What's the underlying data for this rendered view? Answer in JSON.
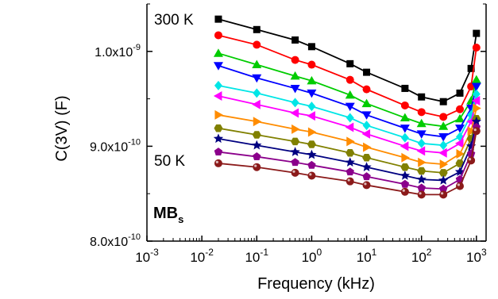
{
  "chart_data": {
    "type": "line",
    "title": "",
    "xlabel": "Frequency (kHz)",
    "ylabel": "C(3V) (F)",
    "x_scale": "log",
    "xlim": [
      0.001,
      1500
    ],
    "ylim": [
      8e-10,
      1.05e-09
    ],
    "grid": false,
    "x_ticks": [
      0.001,
      0.01,
      0.1,
      1,
      10,
      100,
      1000
    ],
    "x_tick_labels": [
      {
        "base": "10",
        "exp": "-3"
      },
      {
        "base": "10",
        "exp": "-2"
      },
      {
        "base": "10",
        "exp": "-1"
      },
      {
        "base": "10",
        "exp": "0"
      },
      {
        "base": "10",
        "exp": "1"
      },
      {
        "base": "10",
        "exp": "2"
      },
      {
        "base": "10",
        "exp": "3"
      }
    ],
    "y_ticks": [
      8e-10,
      9e-10,
      1e-09
    ],
    "y_tick_labels": [
      {
        "mant": "8.0x10",
        "exp": "-10"
      },
      {
        "mant": "9.0x10",
        "exp": "-10"
      },
      {
        "mant": "1.0x10",
        "exp": "-9"
      }
    ],
    "annotations": {
      "top_label": "300 K",
      "bottom_label": "50 K",
      "bottom_label_color": "#7a1515",
      "sample_main": "MB",
      "sample_sub": "s"
    },
    "x": [
      0.02,
      0.1,
      0.5,
      1,
      5,
      10,
      50,
      100,
      250,
      500,
      800,
      1000
    ],
    "series": [
      {
        "color": "#000000",
        "marker": "square",
        "values": [
          1.034e-09,
          1.023e-09,
          1.012e-09,
          1.005e-09,
          9.87e-10,
          9.78e-10,
          9.61e-10,
          9.52e-10,
          9.47e-10,
          9.56e-10,
          9.82e-10,
          1.019e-09
        ]
      },
      {
        "color": "#ff0000",
        "marker": "circle",
        "values": [
          1.017e-09,
          1.007e-09,
          9.91e-10,
          9.86e-10,
          9.7e-10,
          9.6e-10,
          9.43e-10,
          9.36e-10,
          9.31e-10,
          9.39e-10,
          9.63e-10,
          1.004e-09
        ]
      },
      {
        "color": "#00cc00",
        "marker": "triangle-up",
        "values": [
          9.98e-10,
          9.86e-10,
          9.74e-10,
          9.69e-10,
          9.54e-10,
          9.45e-10,
          9.3e-10,
          9.24e-10,
          9.21e-10,
          9.29e-10,
          9.48e-10,
          9.7e-10
        ]
      },
      {
        "color": "#0000ff",
        "marker": "triangle-down",
        "values": [
          9.85e-10,
          9.72e-10,
          9.61e-10,
          9.56e-10,
          9.42e-10,
          9.33e-10,
          9.19e-10,
          9.13e-10,
          9.1e-10,
          9.19e-10,
          9.4e-10,
          9.63e-10
        ]
      },
      {
        "color": "#00e6e6",
        "marker": "diamond",
        "values": [
          9.64e-10,
          9.56e-10,
          9.46e-10,
          9.42e-10,
          9.3e-10,
          9.22e-10,
          9.09e-10,
          9.03e-10,
          9.01e-10,
          9.1e-10,
          9.33e-10,
          9.55e-10
        ]
      },
      {
        "color": "#ff00ff",
        "marker": "triangle-left",
        "values": [
          9.53e-10,
          9.44e-10,
          9.35e-10,
          9.32e-10,
          9.2e-10,
          9.13e-10,
          9e-10,
          8.95e-10,
          8.93e-10,
          9.03e-10,
          9.26e-10,
          9.48e-10
        ]
      },
      {
        "color": "#ff8c00",
        "marker": "triangle-right",
        "values": [
          9.33e-10,
          9.26e-10,
          9.18e-10,
          9.15e-10,
          9.05e-10,
          8.99e-10,
          8.88e-10,
          8.83e-10,
          8.81e-10,
          8.92e-10,
          9.16e-10,
          9.4e-10
        ]
      },
      {
        "color": "#808000",
        "marker": "hexagon",
        "values": [
          9.19e-10,
          9.12e-10,
          9.05e-10,
          9.02e-10,
          8.93e-10,
          8.88e-10,
          8.78e-10,
          8.74e-10,
          8.72e-10,
          8.82e-10,
          9.08e-10,
          9.29e-10
        ]
      },
      {
        "color": "#000080",
        "marker": "star",
        "values": [
          9.08e-10,
          9.01e-10,
          8.94e-10,
          8.91e-10,
          8.83e-10,
          8.78e-10,
          8.69e-10,
          8.65e-10,
          8.64e-10,
          8.73e-10,
          9e-10,
          9.26e-10
        ]
      },
      {
        "color": "#8b008b",
        "marker": "pentagon",
        "values": [
          8.94e-10,
          8.89e-10,
          8.83e-10,
          8.8e-10,
          8.73e-10,
          8.68e-10,
          8.6e-10,
          8.56e-10,
          8.55e-10,
          8.65e-10,
          8.92e-10,
          9.2e-10
        ]
      },
      {
        "color": "#8b1a1a",
        "marker": "ball",
        "values": [
          8.82e-10,
          8.78e-10,
          8.72e-10,
          8.69e-10,
          8.63e-10,
          8.59e-10,
          8.52e-10,
          8.49e-10,
          8.49e-10,
          8.58e-10,
          8.85e-10,
          9.16e-10
        ]
      }
    ]
  }
}
